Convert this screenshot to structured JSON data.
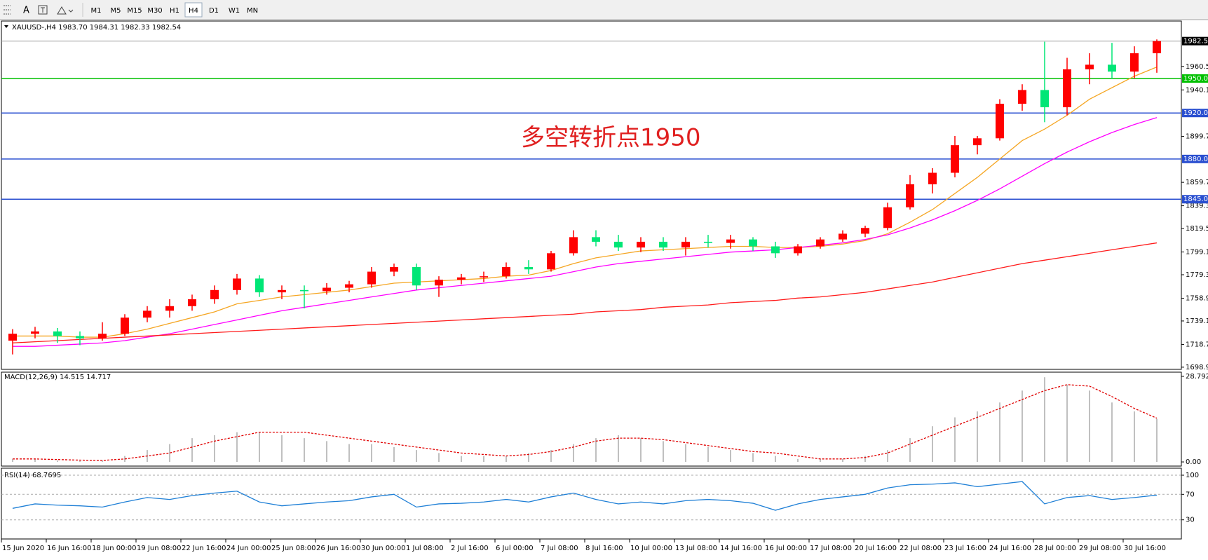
{
  "toolbar": {
    "text_tool": "A",
    "timeframes": [
      "M1",
      "M5",
      "M15",
      "M30",
      "H1",
      "H4",
      "D1",
      "W1",
      "MN"
    ],
    "active_index": 5
  },
  "chart_data": [
    {
      "type": "candlestick",
      "title": "XAUUSD-,H4  1983.70 1984.31 1982.33 1982.54",
      "annotation": "多空转折点1950",
      "annotation_color": "#e02020",
      "up_color": "#ff0000",
      "down_color": "#00e676",
      "categories": [
        "15 Jun 2020",
        null,
        "16 Jun 16:00",
        null,
        "18 Jun 00:00",
        null,
        "19 Jun 08:00",
        null,
        "22 Jun 16:00",
        null,
        "24 Jun 00:00",
        null,
        "25 Jun 08:00",
        null,
        "26 Jun 16:00",
        null,
        "30 Jun 00:00",
        null,
        "1 Jul 08:00",
        null,
        "2 Jul 16:00",
        null,
        "6 Jul 00:00",
        null,
        "7 Jul 08:00",
        null,
        "8 Jul 16:00",
        null,
        "10 Jul 00:00",
        null,
        "13 Jul 08:00",
        null,
        "14 Jul 16:00",
        null,
        "16 Jul 00:00",
        null,
        "17 Jul 08:00",
        null,
        "20 Jul 16:00",
        null,
        "22 Jul 08:00",
        null,
        "23 Jul 16:00",
        null,
        "24 Jul 16:00",
        null,
        "28 Jul 00:00",
        null,
        "29 Jul 08:00",
        null,
        "30 Jul 16:00",
        null
      ],
      "open": [
        1722,
        1728,
        1730,
        1726,
        1724,
        1728,
        1742,
        1748,
        1752,
        1758,
        1766,
        1776,
        1764,
        1766,
        1765,
        1768,
        1771,
        1782,
        1786,
        1770,
        1775,
        1777,
        1778,
        1786,
        1784,
        1798,
        1812,
        1808,
        1803,
        1808,
        1803,
        1808,
        1807,
        1810,
        1804,
        1798,
        1804,
        1810,
        1815,
        1820,
        1838,
        1858,
        1868,
        1892,
        1898,
        1928,
        1940,
        1925,
        1958,
        1962,
        1956,
        1972
      ],
      "high": [
        1732,
        1734,
        1733,
        1730,
        1738,
        1745,
        1752,
        1758,
        1762,
        1770,
        1780,
        1779,
        1770,
        1770,
        1772,
        1774,
        1786,
        1789,
        1789,
        1778,
        1780,
        1782,
        1790,
        1792,
        1800,
        1818,
        1818,
        1814,
        1812,
        1812,
        1812,
        1814,
        1814,
        1812,
        1808,
        1806,
        1812,
        1818,
        1822,
        1842,
        1866,
        1872,
        1900,
        1900,
        1932,
        1945,
        1982,
        1968,
        1972,
        1981,
        1978,
        1984
      ],
      "low": [
        1710,
        1724,
        1720,
        1718,
        1722,
        1726,
        1738,
        1742,
        1748,
        1754,
        1762,
        1760,
        1758,
        1750,
        1762,
        1764,
        1768,
        1778,
        1766,
        1760,
        1771,
        1773,
        1776,
        1780,
        1782,
        1796,
        1804,
        1800,
        1799,
        1800,
        1796,
        1803,
        1802,
        1800,
        1794,
        1796,
        1802,
        1808,
        1812,
        1818,
        1836,
        1850,
        1864,
        1884,
        1896,
        1922,
        1912,
        1918,
        1945,
        1950,
        1950,
        1955
      ],
      "close": [
        1728,
        1730,
        1726,
        1724,
        1728,
        1742,
        1748,
        1752,
        1758,
        1766,
        1776,
        1764,
        1766,
        1765,
        1768,
        1771,
        1782,
        1786,
        1770,
        1775,
        1777,
        1778,
        1786,
        1784,
        1798,
        1812,
        1808,
        1803,
        1808,
        1803,
        1808,
        1807,
        1810,
        1804,
        1798,
        1804,
        1810,
        1815,
        1820,
        1838,
        1858,
        1868,
        1892,
        1898,
        1928,
        1940,
        1925,
        1958,
        1962,
        1956,
        1972,
        1982.54
      ],
      "lines": [
        {
          "color": "#f5a623",
          "values": [
            1726,
            1726,
            1726,
            1725,
            1725,
            1728,
            1732,
            1737,
            1742,
            1747,
            1754,
            1757,
            1760,
            1762,
            1764,
            1766,
            1769,
            1772,
            1773,
            1774,
            1775,
            1776,
            1778,
            1779,
            1783,
            1789,
            1794,
            1797,
            1800,
            1801,
            1802,
            1803,
            1804,
            1804,
            1803,
            1803,
            1804,
            1806,
            1809,
            1815,
            1825,
            1836,
            1850,
            1864,
            1880,
            1896,
            1906,
            1918,
            1932,
            1942,
            1952,
            1960
          ]
        },
        {
          "color": "#ff00ff",
          "values": [
            1717,
            1717,
            1718,
            1719,
            1720,
            1722,
            1725,
            1728,
            1732,
            1736,
            1740,
            1744,
            1748,
            1751,
            1754,
            1757,
            1760,
            1763,
            1766,
            1768,
            1770,
            1772,
            1774,
            1776,
            1778,
            1782,
            1786,
            1789,
            1791,
            1793,
            1795,
            1797,
            1799,
            1800,
            1801,
            1803,
            1805,
            1807,
            1810,
            1814,
            1820,
            1827,
            1835,
            1844,
            1854,
            1865,
            1876,
            1886,
            1895,
            1903,
            1910,
            1916
          ]
        },
        {
          "color": "#ff1a1a",
          "values": [
            1720,
            1721,
            1722,
            1723,
            1724,
            1725,
            1726,
            1727,
            1728,
            1729,
            1730,
            1731,
            1732,
            1733,
            1734,
            1735,
            1736,
            1737,
            1738,
            1739,
            1740,
            1741,
            1742,
            1743,
            1744,
            1745,
            1747,
            1748,
            1749,
            1751,
            1752,
            1753,
            1755,
            1756,
            1757,
            1759,
            1760,
            1762,
            1764,
            1767,
            1770,
            1773,
            1777,
            1781,
            1785,
            1789,
            1792,
            1795,
            1798,
            1801,
            1804,
            1807
          ]
        }
      ],
      "levels": [
        {
          "value": 1950,
          "label": "1950.00",
          "color": "#00c000"
        },
        {
          "value": 1920,
          "label": "1920.00",
          "color": "#2a4fd0"
        },
        {
          "value": 1880,
          "label": "1880.00",
          "color": "#2a4fd0"
        },
        {
          "value": 1845,
          "label": "1845.00",
          "color": "#2a4fd0"
        }
      ],
      "last_price": {
        "value": 1982.54,
        "label": "1982.54",
        "color": "#9a9a9a"
      },
      "ylim": [
        1697,
        2000
      ],
      "yticks": [
        {
          "value": 1960.5,
          "label": "1960.50"
        },
        {
          "value": 1940.1,
          "label": "1940.10"
        },
        {
          "value": 1899.7,
          "label": "1899.70"
        },
        {
          "value": 1859.7,
          "label": "1859.70"
        },
        {
          "value": 1839.3,
          "label": "1839.30"
        },
        {
          "value": 1819.5,
          "label": "1819.50"
        },
        {
          "value": 1799.1,
          "label": "1799.10"
        },
        {
          "value": 1779.3,
          "label": "1779.30"
        },
        {
          "value": 1758.9,
          "label": "1758.90"
        },
        {
          "value": 1739.1,
          "label": "1739.10"
        },
        {
          "value": 1718.7,
          "label": "1718.70"
        },
        {
          "value": 1698.9,
          "label": "1698.90"
        }
      ]
    },
    {
      "type": "macd",
      "title": "MACD(12,26,9) 14.515 14.717",
      "histogram_color": "#c0c0c0",
      "signal_color": "#e00000",
      "histogram": [
        1,
        1,
        0.5,
        0.3,
        0.5,
        2,
        4,
        6,
        8,
        9,
        10,
        10,
        9,
        8,
        7,
        6,
        6,
        5,
        4,
        3,
        2,
        2,
        2,
        3,
        4,
        6,
        8,
        9,
        8,
        7,
        6,
        5,
        4,
        3,
        2,
        1,
        1,
        1,
        2,
        4,
        8,
        12,
        15,
        17,
        20,
        24,
        28.5,
        26,
        24,
        20,
        17,
        14.515
      ],
      "signal": [
        1,
        1,
        0.8,
        0.6,
        0.5,
        1,
        2,
        3,
        5,
        7,
        8.5,
        10,
        10,
        10,
        9,
        8,
        7,
        6,
        5,
        4,
        3,
        2.5,
        2,
        2.5,
        3.5,
        5,
        7,
        8,
        8,
        7.5,
        6.5,
        5.5,
        4.5,
        3.5,
        3,
        2,
        1,
        1,
        1.5,
        3,
        6,
        9,
        12,
        15,
        18,
        21,
        24,
        26,
        25.5,
        22,
        18,
        14.717
      ],
      "ylim": [
        -1.4,
        30.2
      ],
      "yticks": [
        {
          "value": 28.792,
          "label": "28.792"
        },
        {
          "value": 0,
          "label": "0.00"
        }
      ]
    },
    {
      "type": "line",
      "title": "RSI(14) 68.7695",
      "color": "#1e7fd6",
      "values": [
        48,
        55,
        53,
        52,
        50,
        58,
        65,
        62,
        68,
        72,
        75,
        58,
        52,
        55,
        58,
        60,
        66,
        70,
        50,
        55,
        56,
        58,
        62,
        58,
        66,
        72,
        62,
        55,
        58,
        55,
        60,
        62,
        60,
        56,
        45,
        55,
        62,
        66,
        70,
        80,
        85,
        86,
        88,
        82,
        86,
        90,
        55,
        65,
        68,
        62,
        65,
        68.7695
      ],
      "ylim": [
        0,
        111
      ],
      "yticks": [
        100,
        70,
        30
      ],
      "grid": true
    }
  ]
}
